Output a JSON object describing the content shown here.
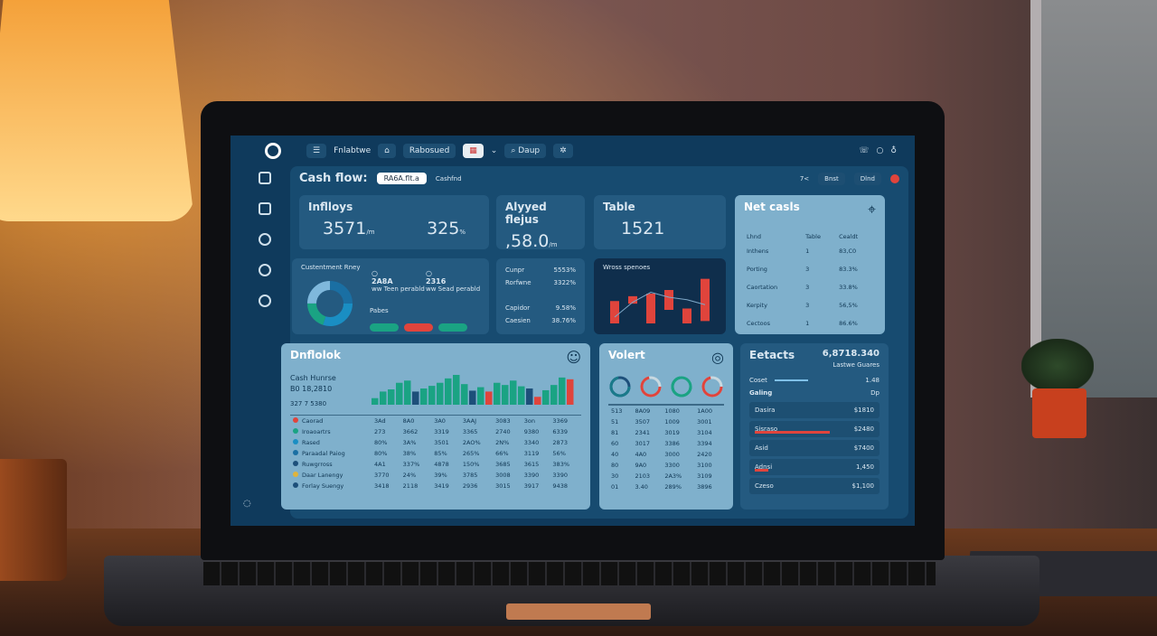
{
  "topbar": {
    "menu_label": "Fnlabtwe",
    "btn1": "Rabosued",
    "btn2": "Daup",
    "icons": [
      "phone-icon",
      "circle-icon",
      "bell-icon"
    ]
  },
  "header": {
    "title": "Cash flow:",
    "badge": "RA6A.flt.a",
    "sub": "Cashfnd",
    "ctrl1": "Bnst",
    "ctrl2": "Dlnd",
    "zoom": "7<"
  },
  "kpis": [
    {
      "label": "Inflloys",
      "v1": "3571",
      "u1": "/m",
      "v2": "325",
      "u2": "%"
    },
    {
      "label": "Alyyed flejus",
      "v1": ",58.0",
      "u1": "/m"
    },
    {
      "label": "Table",
      "v1": "1521"
    }
  ],
  "net": {
    "title": "Net casls",
    "cols": [
      "Lhnd",
      "Table",
      "Cealdt"
    ],
    "rows": [
      [
        "Inthens",
        "1",
        "83,C0"
      ],
      [
        "Porting",
        "3",
        "83.3%"
      ],
      [
        "Caortation",
        "3",
        "33.8%"
      ],
      [
        "Kerpity",
        "3",
        "56,5%"
      ],
      [
        "Cectoos",
        "1",
        "86.6%"
      ]
    ]
  },
  "donut_card": {
    "title": "Custentment Rney",
    "v1": "2A8A",
    "v2": "2316",
    "sub1": "ww Teen perabld",
    "sub2": "ww Sead perabld",
    "legend": "Pabes",
    "pills": [
      "#1aa383",
      "#e0443c",
      "#1aa383"
    ],
    "slices": [
      30,
      20,
      25,
      25
    ]
  },
  "stats": [
    [
      "Cunpr",
      "5553%"
    ],
    [
      "Rorfwne",
      "3322%"
    ],
    [
      "Capidor",
      "9.58%"
    ],
    [
      "Caesien",
      "38.76%"
    ]
  ],
  "mini_chart": {
    "title": "Wross spenoes",
    "type": "bar",
    "values": [
      45,
      15,
      60,
      40,
      30,
      85
    ],
    "line": [
      20,
      50,
      70,
      60,
      55,
      45
    ],
    "colors": "#e0443c"
  },
  "dashboard": {
    "title": "Dnflolok",
    "sub": "Cash Hunrse",
    "v1": "B0 18,2810",
    "v2": "327 7 5380",
    "bars": [
      [
        15,
        "g"
      ],
      [
        30,
        "g"
      ],
      [
        35,
        "g"
      ],
      [
        50,
        "g"
      ],
      [
        55,
        "g"
      ],
      [
        30,
        "n"
      ],
      [
        37,
        "g"
      ],
      [
        43,
        "g"
      ],
      [
        50,
        "g"
      ],
      [
        60,
        "g"
      ],
      [
        68,
        "g"
      ],
      [
        47,
        "g"
      ],
      [
        32,
        "n"
      ],
      [
        40,
        "g"
      ],
      [
        30,
        "r"
      ],
      [
        50,
        "g"
      ],
      [
        45,
        "g"
      ],
      [
        55,
        "g"
      ],
      [
        42,
        "g"
      ],
      [
        37,
        "n"
      ],
      [
        18,
        "r"
      ],
      [
        33,
        "g"
      ],
      [
        45,
        "g"
      ],
      [
        62,
        "g"
      ],
      [
        58,
        "r"
      ]
    ],
    "bar_colors": {
      "g": "#1aa383",
      "n": "#1d4f7a",
      "r": "#e0443c"
    },
    "rows": [
      {
        "label": "Caorad",
        "dot": "#e0443c",
        "vals": [
          "3Ad",
          "8A0",
          "3A0",
          "3AAJ",
          "3083",
          "3on",
          "3369"
        ]
      },
      {
        "label": "Iroaoartrs",
        "dot": "#1aa383",
        "vals": [
          "273",
          "3662",
          "3319",
          "3365",
          "2740",
          "9380",
          "6339"
        ]
      },
      {
        "label": "Rased",
        "dot": "#1a8ec3",
        "vals": [
          "80%",
          "3A%",
          "3501",
          "2AO%",
          "2N%",
          "3340",
          "2873"
        ]
      },
      {
        "label": "Paraadal Paiog",
        "dot": "#1a6fa3",
        "vals": [
          "80%",
          "38%",
          "85%",
          "265%",
          "66%",
          "3119",
          "56%"
        ]
      },
      {
        "label": "Ruwgrross",
        "dot": "#1d4f7a",
        "vals": [
          "4A1",
          "337%",
          "4878",
          "150%",
          "3685",
          "3615",
          "383%"
        ]
      },
      {
        "label": "Daar Lanengy",
        "dot": "#e0b43c",
        "vals": [
          "3770",
          "24%",
          "39%",
          "3785",
          "3008",
          "3390",
          "3390"
        ]
      },
      {
        "label": "Forlay Suengy",
        "dot": "#1d4f7a",
        "vals": [
          "3418",
          "2118",
          "3419",
          "2936",
          "3015",
          "3917",
          "9438"
        ]
      }
    ]
  },
  "volset": {
    "title": "Volert",
    "rings": [
      [
        "#1a7a8a",
        "#1d4f7a"
      ],
      [
        "#e0443c",
        "#c8d8e0"
      ],
      [
        "#1aa383",
        "#1aa383"
      ],
      [
        "#e0443c",
        "#c8d8e0"
      ]
    ],
    "rows": [
      [
        "513",
        "8A09",
        "1080",
        "1A00"
      ],
      [
        "51",
        "3507",
        "1009",
        "3001"
      ],
      [
        "81",
        "2341",
        "3019",
        "3104"
      ],
      [
        "60",
        "3017",
        "3386",
        "3394"
      ],
      [
        "40",
        "4A0",
        "3000",
        "2420"
      ],
      [
        "80",
        "9A0",
        "3300",
        "3100"
      ],
      [
        "30",
        "2103",
        "2A3%",
        "3109"
      ],
      [
        "01",
        "3.40",
        "289%",
        "3896"
      ]
    ]
  },
  "effects": {
    "title": "Eetacts",
    "value": "6,8718.340",
    "sub": "Lastwe Guares",
    "bar_label": "Coset",
    "bar_val": "1.48",
    "bar_fill": 0.4,
    "section": "Galing",
    "section_val": "Dp",
    "rows": [
      {
        "label": "Dasira",
        "val": "$1810",
        "fill": 0
      },
      {
        "label": "Sisraso",
        "val": "$2480",
        "fill": 0.55
      },
      {
        "label": "Asid",
        "val": "$7400",
        "fill": 0
      },
      {
        "label": "Adnsi",
        "val": "1,450",
        "fill": 0.1
      },
      {
        "label": "Czeso",
        "val": "$1,100",
        "fill": 0
      }
    ]
  }
}
